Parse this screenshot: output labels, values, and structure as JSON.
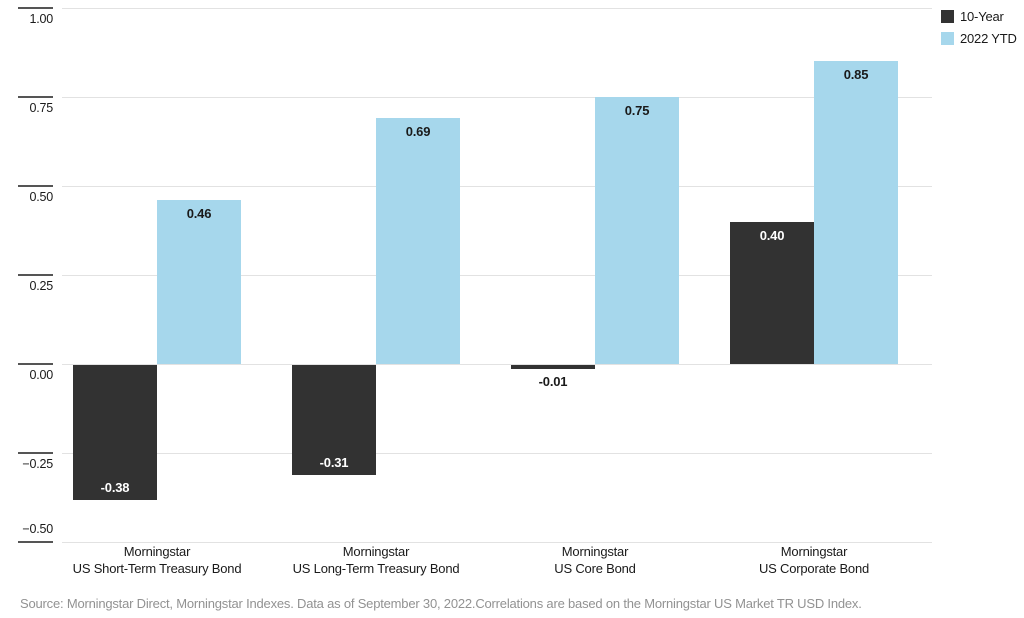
{
  "chart_data": {
    "type": "bar",
    "title": "",
    "categories": [
      [
        "Morningstar",
        "US Short-Term Treasury Bond"
      ],
      [
        "Morningstar",
        "US Long-Term Treasury Bond"
      ],
      [
        "Morningstar",
        "US Core Bond"
      ],
      [
        "Morningstar",
        "US Corporate Bond"
      ]
    ],
    "series": [
      {
        "name": "10-Year",
        "color": "#323232",
        "values": [
          -0.38,
          -0.31,
          -0.01,
          0.4
        ],
        "labels": [
          "-0.38",
          "-0.31",
          "-0.01",
          "0.40"
        ]
      },
      {
        "name": "2022 YTD",
        "color": "#a6d7ec",
        "values": [
          0.46,
          0.69,
          0.75,
          0.85
        ],
        "labels": [
          "0.46",
          "0.69",
          "0.75",
          "0.85"
        ]
      }
    ],
    "ylim": [
      -0.5,
      1.0
    ],
    "yticks": [
      {
        "value": 1.0,
        "label": "1.00"
      },
      {
        "value": 0.75,
        "label": "0.75"
      },
      {
        "value": 0.5,
        "label": "0.50"
      },
      {
        "value": 0.25,
        "label": "0.25"
      },
      {
        "value": 0.0,
        "label": "0.00"
      },
      {
        "value": -0.25,
        "label": "−0.25"
      },
      {
        "value": -0.5,
        "label": "−0.50"
      }
    ],
    "grid": true,
    "legend_position": "top-right"
  },
  "footer": {
    "source": "Source: Morningstar Direct, Morningstar Indexes. Data as of September 30, 2022.Correlations are based on the Morningstar US Market TR USD Index."
  },
  "colors": {
    "grid": "#e2e2e2",
    "tick": "#555555",
    "axis_text": "#1a1a1a",
    "value_label_on_dark": "#ffffff",
    "value_label_on_light": "#1a1a1a",
    "source_text": "#929292",
    "background": "#ffffff"
  }
}
